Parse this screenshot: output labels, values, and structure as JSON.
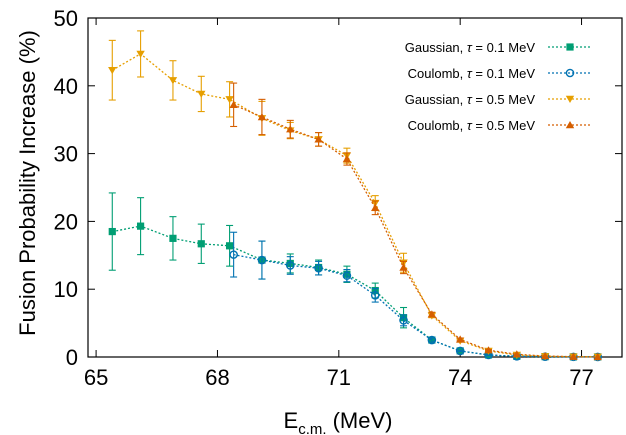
{
  "chart_data": {
    "type": "line",
    "xlabel": "E",
    "xlabel_sub": "c.m.",
    "xlabel_unit": "(MeV)",
    "ylabel": "Fusion Probability Increase (%)",
    "xlim": [
      64.8,
      78.0
    ],
    "ylim": [
      0,
      50
    ],
    "xticks": [
      65,
      68,
      71,
      74,
      77
    ],
    "yticks": [
      0,
      10,
      20,
      30,
      40,
      50
    ],
    "legend_position": "top-right",
    "grid": false,
    "series": [
      {
        "name": "Gaussian, τ = 0.1 MeV",
        "label_main": "Gaussian, ",
        "label_tau": " = 0.1 MeV",
        "color": "#009e73",
        "marker": "filled-square",
        "x": [
          65.4,
          66.1,
          66.9,
          67.6,
          68.3,
          69.1,
          69.8,
          70.5,
          71.2,
          71.9,
          72.6,
          73.3,
          74.0,
          74.7,
          75.4,
          76.1,
          76.8,
          77.4
        ],
        "y": [
          18.5,
          19.3,
          17.5,
          16.7,
          16.4,
          14.3,
          13.8,
          13.2,
          12.2,
          9.8,
          5.8,
          2.5,
          0.9,
          0.3,
          0.1,
          0.05,
          0.02,
          0.01
        ],
        "err": [
          5.7,
          4.2,
          3.2,
          2.9,
          3.0,
          2.8,
          1.4,
          1.1,
          1.2,
          1.1,
          1.5,
          0.3,
          0.2,
          0.1,
          0,
          0,
          0,
          0
        ]
      },
      {
        "name": "Coulomb, τ = 0.1 MeV",
        "label_main": "Coulomb, ",
        "label_tau": " = 0.1 MeV",
        "color": "#0072b2",
        "marker": "open-circle",
        "x": [
          68.4,
          69.1,
          69.8,
          70.5,
          71.2,
          71.9,
          72.6,
          73.3,
          74.0,
          74.7,
          75.4,
          76.1,
          76.8,
          77.4
        ],
        "y": [
          15.1,
          14.3,
          13.5,
          13.1,
          12.0,
          9.1,
          5.4,
          2.5,
          0.9,
          0.3,
          0.1,
          0.05,
          0.02,
          0.01
        ],
        "err": [
          3.3,
          2.8,
          1.3,
          1.0,
          0.9,
          1.0,
          0.8,
          0.3,
          0.1,
          0.1,
          0,
          0,
          0,
          0
        ]
      },
      {
        "name": "Gaussian, τ = 0.5 MeV",
        "label_main": "Gaussian, ",
        "label_tau": " = 0.5 MeV",
        "color": "#e69f00",
        "marker": "filled-triangle-down",
        "x": [
          65.4,
          66.1,
          66.9,
          67.6,
          68.3,
          69.1,
          69.8,
          70.5,
          71.2,
          71.9,
          72.6,
          73.3,
          74.0,
          74.7,
          75.4,
          76.1,
          76.8,
          77.4
        ],
        "y": [
          42.3,
          44.7,
          40.8,
          38.8,
          38.0,
          35.2,
          33.4,
          32.1,
          29.7,
          22.7,
          13.9,
          6.1,
          2.4,
          0.9,
          0.3,
          0.1,
          0.05,
          0.02
        ],
        "err": [
          4.4,
          3.4,
          2.9,
          2.6,
          2.6,
          2.5,
          1.2,
          1.0,
          1.1,
          1.1,
          1.4,
          0.3,
          0.2,
          0.1,
          0,
          0,
          0,
          0
        ]
      },
      {
        "name": "Coulomb, τ = 0.5 MeV",
        "label_main": "Coulomb, ",
        "label_tau": " = 0.5 MeV",
        "color": "#d55e00",
        "marker": "filled-triangle-up",
        "x": [
          68.4,
          69.1,
          69.8,
          70.5,
          71.2,
          71.9,
          72.6,
          73.3,
          74.0,
          74.7,
          75.4,
          76.1,
          76.8,
          77.4
        ],
        "y": [
          37.2,
          35.4,
          33.6,
          32.1,
          29.2,
          22.0,
          13.2,
          6.3,
          2.6,
          1.0,
          0.4,
          0.15,
          0.05,
          0.02
        ],
        "err": [
          3.2,
          2.6,
          1.3,
          1.0,
          0.9,
          1.0,
          0.9,
          0.3,
          0.2,
          0.1,
          0,
          0,
          0,
          0
        ]
      }
    ]
  }
}
